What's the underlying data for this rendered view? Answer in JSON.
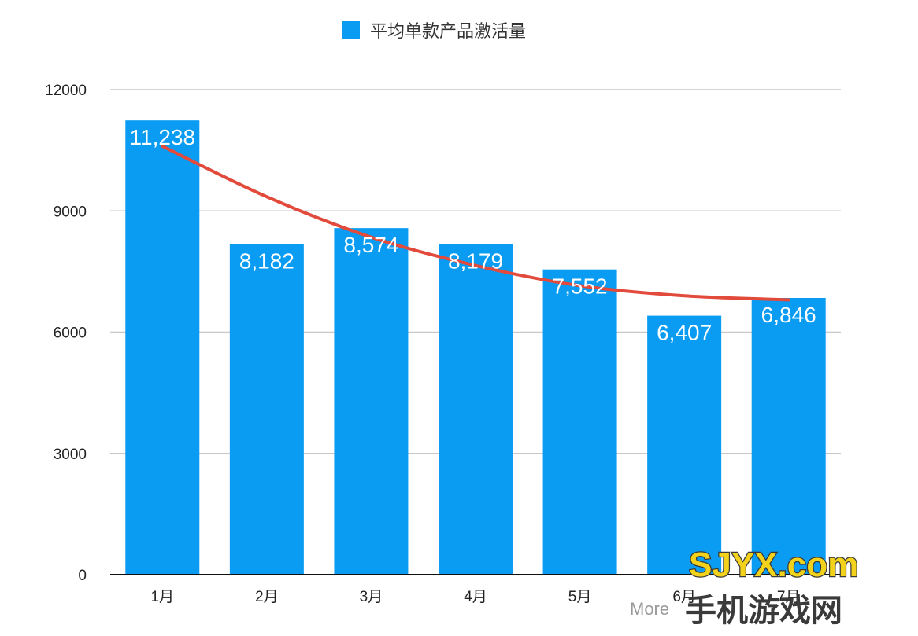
{
  "chart_data": {
    "type": "bar",
    "categories": [
      "1月",
      "2月",
      "3月",
      "4月",
      "5月",
      "6月",
      "7月"
    ],
    "series": [
      {
        "name": "平均单款产品激活量",
        "values": [
          11238,
          8182,
          8574,
          8179,
          7552,
          6407,
          6846
        ],
        "data_labels": [
          "11,238",
          "8,182",
          "8,574",
          "8,179",
          "7,552",
          "6,407",
          "6,846"
        ],
        "color": "#0a9cf2"
      }
    ],
    "trendline": {
      "type": "polynomial",
      "color": "#e24a3b",
      "values": [
        10600,
        9350,
        8350,
        7650,
        7150,
        6900,
        6800
      ]
    },
    "yticks": [
      "0",
      "3000",
      "6000",
      "9000",
      "12000"
    ],
    "ylim": [
      0,
      12000
    ],
    "grid": true,
    "legend_position": "top-center",
    "title": "",
    "xlabel": "",
    "ylabel": ""
  },
  "watermark": {
    "logo_text": "SJYX.com",
    "logo_sub": "手机游戏网",
    "source_text": "More"
  }
}
